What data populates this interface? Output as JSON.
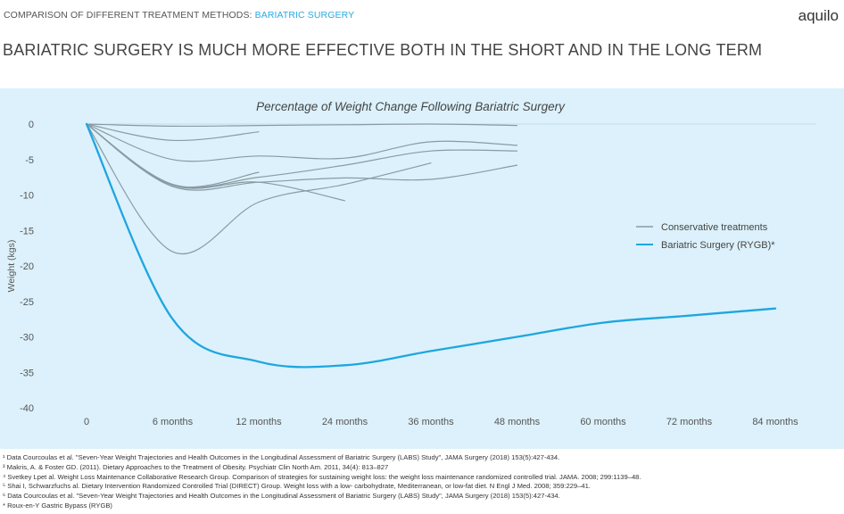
{
  "header": {
    "breadcrumb_prefix": "COMPARISON OF DIFFERENT TREATMENT METHODS:",
    "breadcrumb_highlight": "BARIATRIC SURGERY",
    "brand": "aquilo",
    "headline": "BARIATRIC SURGERY IS MUCH MORE EFFECTIVE BOTH IN THE SHORT AND IN THE LONG TERM"
  },
  "colors": {
    "accent": "#29abe2",
    "panel": "#dcf1fb",
    "conservative": "#8a9aa3",
    "surgery": "#1ea6e0"
  },
  "chart_data": {
    "type": "line",
    "title": "Percentage of Weight Change Following Bariatric Surgery",
    "ylabel": "Weight (kgs)",
    "xlabel": "",
    "categories": [
      "0",
      "6 months",
      "12 months",
      "24 months",
      "36 months",
      "48 months",
      "60 months",
      "72 months",
      "84 months"
    ],
    "yticks": [
      0,
      -5,
      -10,
      -15,
      -20,
      -25,
      -30,
      -35,
      -40
    ],
    "ylim": [
      -40,
      0
    ],
    "legend_position": "right",
    "legend": [
      "Conservative treatments",
      "Bariatric Surgery (RYGB)*"
    ],
    "series": [
      {
        "group": "conservative",
        "values": [
          0,
          -2.3,
          -1.1,
          null,
          null,
          null,
          null,
          null,
          null
        ]
      },
      {
        "group": "conservative",
        "values": [
          0,
          -5.0,
          -4.5,
          -4.8,
          -2.5,
          -3.0,
          null,
          null,
          null
        ]
      },
      {
        "group": "conservative",
        "values": [
          0,
          -8.5,
          -7.5,
          -5.8,
          -3.8,
          -3.8,
          null,
          null,
          null
        ]
      },
      {
        "group": "conservative",
        "values": [
          0,
          -8.8,
          -8.2,
          -7.6,
          -7.8,
          -5.8,
          null,
          null,
          null
        ]
      },
      {
        "group": "conservative",
        "values": [
          0,
          -8.6,
          -8.2,
          -10.8,
          null,
          null,
          null,
          null,
          null
        ]
      },
      {
        "group": "conservative",
        "values": [
          0,
          -8.6,
          -6.8,
          null,
          null,
          null,
          null,
          null,
          null
        ]
      },
      {
        "group": "conservative",
        "values": [
          0,
          -18.0,
          -11.0,
          -8.5,
          -5.5,
          null,
          null,
          null,
          null
        ]
      },
      {
        "group": "conservative",
        "values": [
          0,
          -0.3,
          -0.2,
          -0.1,
          0,
          -0.2,
          null,
          null,
          null
        ]
      },
      {
        "name": "Bariatric Surgery (RYGB)*",
        "group": "surgery",
        "values": [
          0,
          -27.5,
          -33.5,
          -34.0,
          -32.0,
          -30.0,
          -28.0,
          -27.0,
          -26.0
        ]
      }
    ]
  },
  "footnotes": [
    "¹ Data Courcoulas et al. \"Seven-Year Weight Trajectories and Health Outcomes in the Longitudinal Assessment of Bariatric Surgery (LABS) Study\", JAMA Surgery (2018) 153(5):427-434.",
    "³ Makris, A. & Foster GD. (2011). Dietary Approaches to the Treatment of Obesity. Psychiatr Clin North Am. 2011, 34(4): 813–827",
    "⁴ Svetkey Lpet al. Weight Loss Maintenance Collaborative Research Group. Comparison of strategies for sustaining weight loss: the weight loss maintenance randomized controlled trial. JAMA. 2008; 299:1139–48.",
    "⁵ Shai I, Schwarzfuchs  al. Dietary Intervention Randomized Controlled Trial (DIRECT) Group. Weight loss with a low- carbohydrate, Mediterranean, or low-fat diet. N Engl J Med. 2008; 359:229–41.",
    "⁶ Data Courcoulas et al. \"Seven-Year Weight Trajectories and Health Outcomes in the Longitudinal Assessment of Bariatric Surgery (LABS) Study\", JAMA Surgery (2018) 153(5):427-434.",
    "* Roux-en-Y Gastric Bypass (RYGB)"
  ]
}
